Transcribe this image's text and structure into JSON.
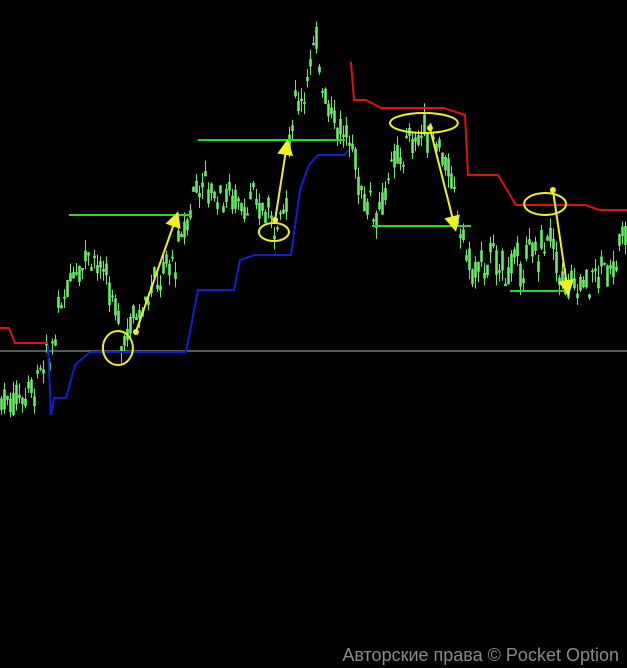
{
  "chart_data": {
    "type": "line",
    "title": "",
    "xlabel": "",
    "ylabel": "",
    "grid": false,
    "legend": "none",
    "bars_visible": 209,
    "price_range": [
      0,
      100
    ],
    "price_path": [
      [
        0,
        7.5
      ],
      [
        10,
        10
      ],
      [
        16,
        17.5
      ],
      [
        18,
        25
      ],
      [
        23,
        40
      ],
      [
        30,
        45
      ],
      [
        37,
        32.5
      ],
      [
        40,
        22.5
      ],
      [
        47,
        32.5
      ],
      [
        58,
        42.5
      ],
      [
        62,
        52.5
      ],
      [
        65,
        62.5
      ],
      [
        70,
        60
      ],
      [
        80,
        57.5
      ],
      [
        88,
        55
      ],
      [
        92,
        52.5
      ],
      [
        95,
        57.5
      ],
      [
        97,
        80
      ],
      [
        102,
        87.5
      ],
      [
        105,
        96
      ],
      [
        108,
        85
      ],
      [
        113,
        75
      ],
      [
        117,
        70
      ],
      [
        120,
        60
      ],
      [
        125,
        55
      ],
      [
        132,
        67.5
      ],
      [
        137,
        72.5
      ],
      [
        143,
        75
      ],
      [
        147,
        70
      ],
      [
        152,
        53.75
      ],
      [
        157,
        38.75
      ],
      [
        163,
        42.5
      ],
      [
        170,
        40
      ],
      [
        177,
        43.75
      ],
      [
        183,
        47.5
      ],
      [
        188,
        35
      ],
      [
        197,
        37.5
      ],
      [
        203,
        41.25
      ],
      [
        209,
        48.75
      ]
    ],
    "series": [
      {
        "role": "resistance-trail",
        "color": "#e01010",
        "segments": [
          [
            [
              0,
              25.5
            ],
            [
              3,
              25.5
            ],
            [
              5,
              21.75
            ],
            [
              16,
              21.75
            ]
          ],
          [
            [
              117,
              92
            ],
            [
              118,
              82.5
            ],
            [
              122,
              82.5
            ],
            [
              127,
              80.5
            ],
            [
              148,
              80.5
            ],
            [
              155,
              78.75
            ],
            [
              156,
              63.75
            ],
            [
              166,
              63.75
            ],
            [
              172,
              56.25
            ],
            [
              195,
              56.25
            ],
            [
              200,
              55
            ],
            [
              209,
              55
            ]
          ]
        ]
      },
      {
        "role": "support-trail",
        "color": "#1020d0",
        "segments": [
          [
            [
              16,
              21.25
            ],
            [
              17,
              3.75
            ],
            [
              18,
              8
            ],
            [
              22,
              8
            ],
            [
              25,
              16.25
            ],
            [
              30,
              19.5
            ],
            [
              62,
              19.5
            ],
            [
              66,
              35
            ],
            [
              78,
              35
            ],
            [
              80,
              42.5
            ],
            [
              85,
              43.75
            ],
            [
              97,
              43.75
            ],
            [
              100,
              60
            ],
            [
              103,
              66.25
            ],
            [
              106,
              68.75
            ],
            [
              115,
              68.75
            ],
            [
              116,
              70
            ]
          ]
        ]
      }
    ],
    "levels": [
      {
        "from": 23,
        "to": 64,
        "price": 53.75,
        "color": "#22dd22"
      },
      {
        "from": 66,
        "to": 115,
        "price": 72.5,
        "color": "#22dd22"
      },
      {
        "from": 124,
        "to": 157,
        "price": 51,
        "color": "#22dd22"
      },
      {
        "from": 170,
        "to": 188,
        "price": 34.75,
        "color": "#22dd22"
      }
    ],
    "reference_line": {
      "price": 19.75,
      "color": "#b0b0b0"
    },
    "annotations": {
      "color": "#f0f020",
      "ellipses": [
        [
          39.3,
          20.5,
          5,
          4.25
        ],
        [
          91.3,
          49.5,
          5,
          2.25
        ],
        [
          141.3,
          76.75,
          11.3,
          2.5
        ],
        [
          181.7,
          56.5,
          7,
          2.75
        ]
      ],
      "arrows": [
        [
          [
            45.3,
            24.5
          ],
          [
            59,
            53.75
          ]
        ],
        [
          [
            91.7,
            52.5
          ],
          [
            95.7,
            71.75
          ]
        ],
        [
          [
            143.3,
            75.5
          ],
          [
            151.7,
            50.5
          ]
        ],
        [
          [
            184.3,
            60
          ],
          [
            189.3,
            34.5
          ]
        ]
      ]
    },
    "candle_color": "#66ee66"
  },
  "watermark": "Авторские права © Pocket Option"
}
